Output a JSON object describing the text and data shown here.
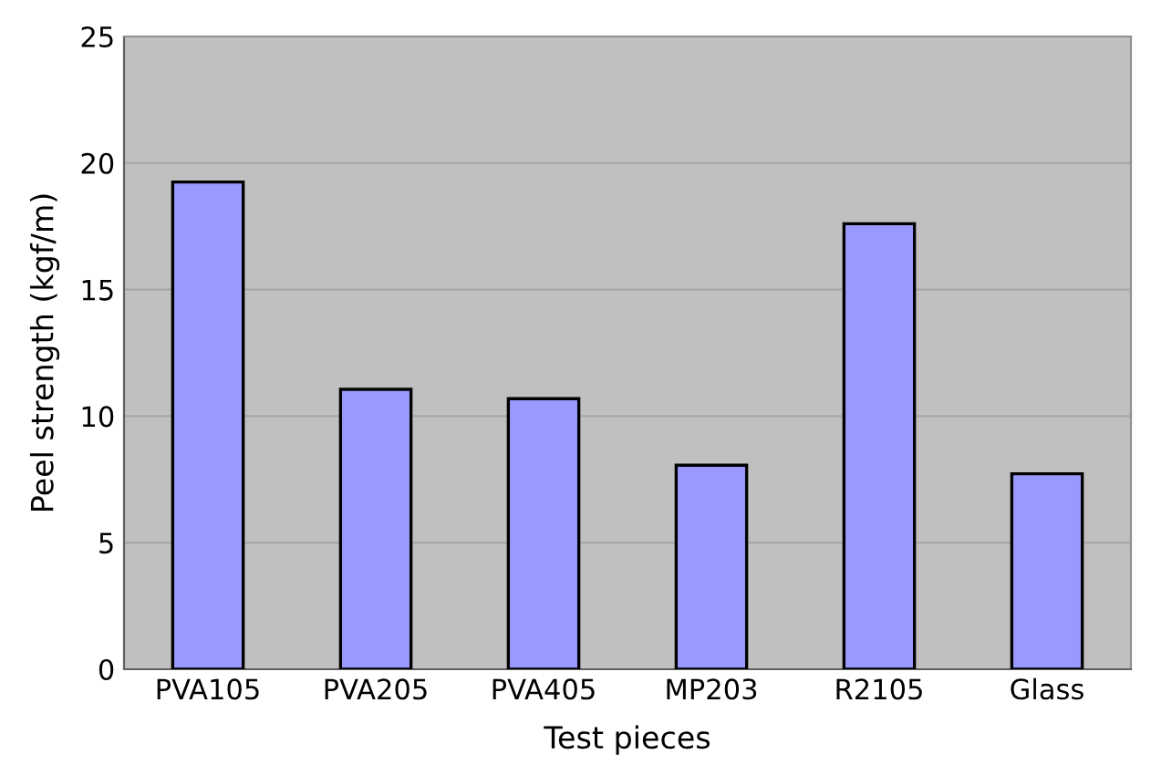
{
  "chart_data": {
    "type": "bar",
    "xlabel": "Test pieces",
    "ylabel": "Peel strength (kgf/m)",
    "categories": [
      "PVA105",
      "PVA205",
      "PVA405",
      "MP203",
      "R2105",
      "Glass"
    ],
    "values": [
      19.25,
      11.06,
      10.69,
      8.06,
      17.6,
      7.72
    ],
    "color": "#9999ff",
    "ylim": [
      0,
      25
    ],
    "yticks": [
      0,
      5,
      10,
      15,
      20,
      25
    ],
    "grid": "y",
    "legend": false
  }
}
